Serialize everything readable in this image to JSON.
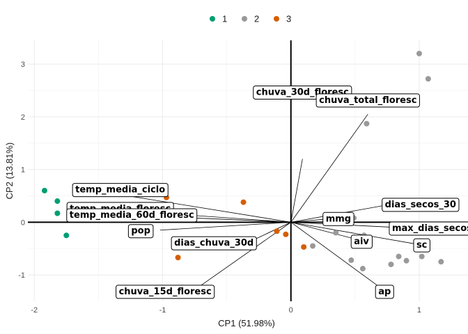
{
  "chart_data": {
    "type": "scatter",
    "subtype": "pca-biplot",
    "title": "",
    "xlabel": "CP1 (51.98%)",
    "ylabel": "CP2 (13.81%)",
    "xlim": [
      -2.05,
      1.38
    ],
    "ylim": [
      -1.5,
      3.45
    ],
    "xticks": [
      -2,
      -1,
      0,
      1
    ],
    "xtick_labels": [
      "-2",
      "-1",
      "0",
      "1"
    ],
    "yticks": [
      -1,
      0,
      1,
      2,
      3
    ],
    "ytick_labels": [
      "-1",
      "0",
      "1",
      "2",
      "3"
    ],
    "grid": true,
    "legend_position": "top",
    "colors": {
      "1": "#009e73",
      "2": "#999999",
      "3": "#d55e00"
    },
    "series": [
      {
        "name": "1",
        "points": [
          [
            -1.92,
            0.6
          ],
          [
            -1.82,
            0.4
          ],
          [
            -1.82,
            0.17
          ],
          [
            -1.75,
            -0.25
          ]
        ]
      },
      {
        "name": "2",
        "points": [
          [
            1.0,
            3.2
          ],
          [
            1.07,
            2.72
          ],
          [
            0.59,
            1.87
          ],
          [
            0.49,
            0.08
          ],
          [
            0.57,
            -0.25
          ],
          [
            0.17,
            -0.45
          ],
          [
            0.35,
            -0.2
          ],
          [
            0.47,
            -0.72
          ],
          [
            0.56,
            -0.88
          ],
          [
            0.78,
            -0.8
          ],
          [
            0.84,
            -0.65
          ],
          [
            0.9,
            -0.73
          ],
          [
            1.02,
            -0.65
          ],
          [
            1.17,
            -0.75
          ]
        ]
      },
      {
        "name": "3",
        "points": [
          [
            -0.37,
            0.38
          ],
          [
            -0.97,
            0.47
          ],
          [
            -0.88,
            -0.67
          ],
          [
            -0.11,
            -0.17
          ],
          [
            -0.04,
            -0.23
          ],
          [
            0.1,
            -0.47
          ]
        ]
      }
    ],
    "loadings": [
      {
        "label": "chuva_30d_floresc",
        "end": [
          0.09,
          1.2
        ],
        "label_at": [
          0.09,
          2.48
        ]
      },
      {
        "label": "chuva_total_floresc",
        "end": [
          0.6,
          2.05
        ],
        "label_at": [
          0.6,
          2.33
        ]
      },
      {
        "label": "temp_media_ciclo",
        "end": [
          -1.6,
          0.63
        ],
        "label_at": [
          -1.33,
          0.63
        ]
      },
      {
        "label": "temp_media_floresc",
        "end": [
          -1.6,
          0.27
        ],
        "label_at": [
          -1.33,
          0.27
        ]
      },
      {
        "label": "temp_media_60d_floresc",
        "end": [
          -1.6,
          0.17
        ],
        "label_at": [
          -1.24,
          0.15
        ]
      },
      {
        "label": "pop",
        "end": [
          -1.02,
          -0.15
        ],
        "label_at": [
          -1.17,
          -0.15
        ]
      },
      {
        "label": "dias_chuva_30d",
        "end": [
          -0.33,
          -0.38
        ],
        "label_at": [
          -0.6,
          -0.38
        ]
      },
      {
        "label": "chuva_15d_floresc",
        "end": [
          -0.76,
          -1.3
        ],
        "label_at": [
          -0.98,
          -1.3
        ]
      },
      {
        "label": "mmg",
        "end": [
          0.37,
          0.08
        ],
        "label_at": [
          0.37,
          0.08
        ]
      },
      {
        "label": "aiv",
        "end": [
          0.55,
          -0.35
        ],
        "label_at": [
          0.55,
          -0.35
        ]
      },
      {
        "label": "ap",
        "end": [
          0.73,
          -1.3
        ],
        "label_at": [
          0.73,
          -1.3
        ]
      },
      {
        "label": "dias_secos_30",
        "end": [
          0.8,
          0.35
        ],
        "label_at": [
          1.01,
          0.35
        ]
      },
      {
        "label": "max_dias_secos",
        "end": [
          0.83,
          -0.1
        ],
        "label_at": [
          1.1,
          -0.1
        ]
      },
      {
        "label": "sc",
        "end": [
          0.99,
          -0.42
        ],
        "label_at": [
          1.02,
          -0.42
        ]
      }
    ]
  }
}
